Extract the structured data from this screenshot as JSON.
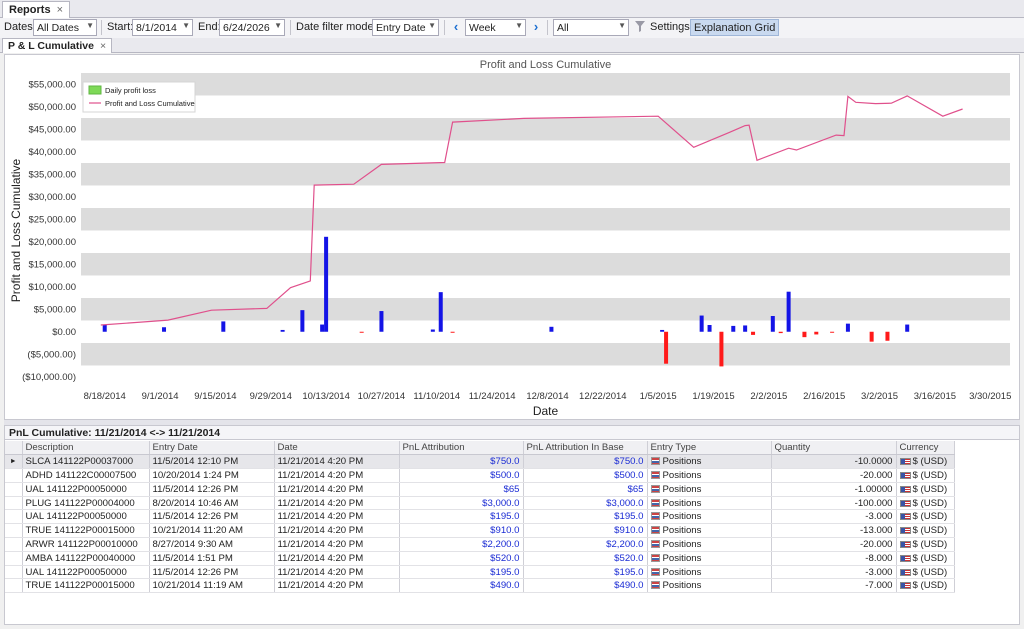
{
  "tabs": {
    "reports": "Reports",
    "pnl": "P & L Cumulative",
    "close": "×"
  },
  "toolbar": {
    "dates_label": "Dates:",
    "dates_value": "All Dates",
    "start_label": "Start:",
    "start_value": "8/1/2014",
    "end_label": "End:",
    "end_value": "6/24/2026",
    "mode_label": "Date filter mode:",
    "mode_value": "Entry Date",
    "period_value": "Week",
    "filter_value": "All",
    "settings_label": "Settings",
    "explanation_label": "Explanation Grid",
    "prev_icon": "‹",
    "next_icon": "›"
  },
  "chart_data": {
    "type": "bar+line",
    "title": "Profit and Loss Cumulative",
    "xlabel": "Date",
    "ylabel": "Profit and Loss Cumulative",
    "legend": [
      "Daily profit loss",
      "Profit and Loss Cumulative"
    ],
    "legend_placement": "top-left",
    "ylim": [
      -12500,
      57500
    ],
    "yticks": [
      "$55,000.00",
      "$50,000.00",
      "$45,000.00",
      "$40,000.00",
      "$35,000.00",
      "$30,000.00",
      "$25,000.00",
      "$20,000.00",
      "$15,000.00",
      "$10,000.00",
      "$5,000.00",
      "$0.00",
      "($5,000.00)",
      "($10,000.00)"
    ],
    "ytick_values": [
      55000,
      50000,
      45000,
      40000,
      35000,
      30000,
      25000,
      20000,
      15000,
      10000,
      5000,
      0,
      -5000,
      -10000
    ],
    "xticks": [
      "8/18/2014",
      "9/1/2014",
      "9/15/2014",
      "9/29/2014",
      "10/13/2014",
      "10/27/2014",
      "11/10/2014",
      "11/24/2014",
      "12/8/2014",
      "12/22/2014",
      "1/5/2015",
      "1/19/2015",
      "2/2/2015",
      "2/16/2015",
      "3/2/2015",
      "3/16/2015",
      "3/30/2015"
    ],
    "xtick_days": [
      0,
      14,
      28,
      42,
      56,
      70,
      84,
      98,
      112,
      126,
      140,
      154,
      168,
      182,
      196,
      210,
      224
    ],
    "x_range_days": [
      -6,
      229
    ],
    "line": [
      [
        -1,
        1500
      ],
      [
        10,
        2200
      ],
      [
        16,
        2600
      ],
      [
        27,
        4800
      ],
      [
        41,
        5200
      ],
      [
        47,
        9800
      ],
      [
        52,
        11300
      ],
      [
        53,
        32600
      ],
      [
        63,
        32800
      ],
      [
        70,
        37200
      ],
      [
        86,
        37600
      ],
      [
        88,
        46600
      ],
      [
        106,
        47400
      ],
      [
        140,
        47900
      ],
      [
        149,
        41000
      ],
      [
        158,
        44300
      ],
      [
        162,
        45800
      ],
      [
        163,
        45900
      ],
      [
        165,
        38100
      ],
      [
        173,
        40800
      ],
      [
        175,
        40400
      ],
      [
        185,
        43700
      ],
      [
        187,
        43600
      ],
      [
        188,
        52300
      ],
      [
        190,
        51000
      ],
      [
        195,
        50700
      ],
      [
        199,
        50800
      ],
      [
        203,
        52400
      ],
      [
        212,
        47900
      ],
      [
        217,
        49500
      ]
    ],
    "bars": [
      [
        0,
        1500,
        "blue"
      ],
      [
        15,
        1000,
        "blue"
      ],
      [
        30,
        2300,
        "blue"
      ],
      [
        45,
        400,
        "blue"
      ],
      [
        50,
        4800,
        "blue"
      ],
      [
        55,
        1600,
        "blue"
      ],
      [
        56,
        21100,
        "blue"
      ],
      [
        65,
        -200,
        "red"
      ],
      [
        70,
        4600,
        "blue"
      ],
      [
        83,
        500,
        "blue"
      ],
      [
        85,
        8800,
        "blue"
      ],
      [
        88,
        -100,
        "red"
      ],
      [
        113,
        1100,
        "blue"
      ],
      [
        141,
        400,
        "blue"
      ],
      [
        142,
        -7100,
        "red"
      ],
      [
        151,
        3600,
        "blue"
      ],
      [
        153,
        1500,
        "blue"
      ],
      [
        156,
        -7700,
        "red"
      ],
      [
        159,
        1300,
        "blue"
      ],
      [
        162,
        1400,
        "blue"
      ],
      [
        164,
        -700,
        "red"
      ],
      [
        169,
        3500,
        "blue"
      ],
      [
        171,
        -300,
        "red"
      ],
      [
        173,
        8900,
        "blue"
      ],
      [
        177,
        -1200,
        "red"
      ],
      [
        180,
        -600,
        "red"
      ],
      [
        184,
        -200,
        "red"
      ],
      [
        188,
        1800,
        "blue"
      ],
      [
        194,
        -2200,
        "red"
      ],
      [
        198,
        -2000,
        "red"
      ],
      [
        203,
        1600,
        "blue"
      ]
    ]
  },
  "grid": {
    "title": "PnL Cumulative: 11/21/2014 <-> 11/21/2014",
    "row_indicator": "►",
    "columns": [
      "Description",
      "Entry Date",
      "Date",
      "PnL Attribution",
      "PnL Attribution In Base",
      "Entry Type",
      "Quantity",
      "Currency"
    ],
    "rows": [
      [
        "SLCA  141122P00037000",
        "11/5/2014 12:10 PM",
        "11/21/2014 4:20 PM",
        "$750.0",
        "$750.0",
        "Positions",
        "-10.0000",
        "$ (USD)"
      ],
      [
        "ADHD  141122C00007500",
        "10/20/2014 1:24 PM",
        "11/21/2014 4:20 PM",
        "$500.0",
        "$500.0",
        "Positions",
        "-20.000",
        "$ (USD)"
      ],
      [
        "UAL  141122P00050000",
        "11/5/2014 12:26 PM",
        "11/21/2014 4:20 PM",
        "$65",
        "$65",
        "Positions",
        "-1.00000",
        "$ (USD)"
      ],
      [
        "PLUG  141122P00004000",
        "8/20/2014 10:46 AM",
        "11/21/2014 4:20 PM",
        "$3,000.0",
        "$3,000.0",
        "Positions",
        "-100.000",
        "$ (USD)"
      ],
      [
        "UAL  141122P00050000",
        "11/5/2014 12:26 PM",
        "11/21/2014 4:20 PM",
        "$195.0",
        "$195.0",
        "Positions",
        "-3.000",
        "$ (USD)"
      ],
      [
        "TRUE  141122P00015000",
        "10/21/2014 11:20 AM",
        "11/21/2014 4:20 PM",
        "$910.0",
        "$910.0",
        "Positions",
        "-13.000",
        "$ (USD)"
      ],
      [
        "ARWR  141122P00010000",
        "8/27/2014 9:30 AM",
        "11/21/2014 4:20 PM",
        "$2,200.0",
        "$2,200.0",
        "Positions",
        "-20.000",
        "$ (USD)"
      ],
      [
        "AMBA  141122P00040000",
        "11/5/2014 1:51 PM",
        "11/21/2014 4:20 PM",
        "$520.0",
        "$520.0",
        "Positions",
        "-8.000",
        "$ (USD)"
      ],
      [
        "UAL  141122P00050000",
        "11/5/2014 12:26 PM",
        "11/21/2014 4:20 PM",
        "$195.0",
        "$195.0",
        "Positions",
        "-3.000",
        "$ (USD)"
      ],
      [
        "TRUE  141122P00015000",
        "10/21/2014 11:19 AM",
        "11/21/2014 4:20 PM",
        "$490.0",
        "$490.0",
        "Positions",
        "-7.000",
        "$ (USD)"
      ]
    ]
  }
}
